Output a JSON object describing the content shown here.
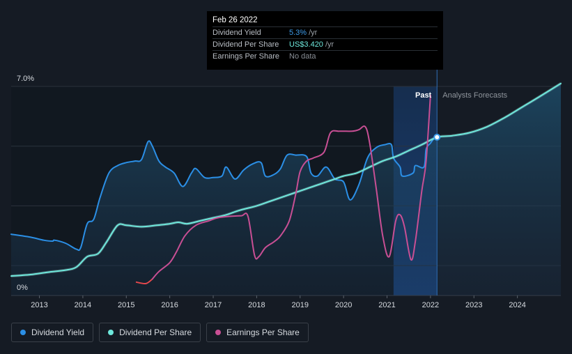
{
  "tooltip": {
    "date": "Feb 26 2022",
    "rows": [
      {
        "name": "Dividend Yield",
        "value": "5.3%",
        "unit": "/yr",
        "color": "#3d9be9"
      },
      {
        "name": "Dividend Per Share",
        "value": "US$3.420",
        "unit": "/yr",
        "color": "#6ee8dc"
      },
      {
        "name": "Earnings Per Share",
        "value": "No data",
        "unit": "",
        "color": "#8a8f96"
      }
    ]
  },
  "legend": [
    {
      "label": "Dividend Yield",
      "color": "#2b8fe6"
    },
    {
      "label": "Dividend Per Share",
      "color": "#6ee8dc"
    },
    {
      "label": "Earnings Per Share",
      "color": "#c84f94"
    }
  ],
  "regions": {
    "past_label": "Past",
    "forecast_label": "Analysts Forecasts"
  },
  "chart_data": {
    "type": "line",
    "y_axis": {
      "min_label": "0%",
      "max_label": "7.0%",
      "range": [
        0,
        7.0
      ]
    },
    "x_axis": {
      "ticks": [
        "2013",
        "2014",
        "2015",
        "2016",
        "2017",
        "2018",
        "2019",
        "2020",
        "2021",
        "2022",
        "2023",
        "2024"
      ],
      "range": [
        2012.35,
        2025.0
      ]
    },
    "past_end": 2022.15,
    "highlight_start": 2021.15,
    "marker": {
      "x": 2022.15,
      "y": 5.3
    },
    "series": [
      {
        "name": "Dividend Yield",
        "color": "#2b8fe6",
        "points": [
          [
            2012.35,
            2.05
          ],
          [
            2012.8,
            1.95
          ],
          [
            2013.1,
            1.85
          ],
          [
            2013.3,
            1.82
          ],
          [
            2013.35,
            1.85
          ],
          [
            2013.6,
            1.75
          ],
          [
            2013.85,
            1.55
          ],
          [
            2013.95,
            1.6
          ],
          [
            2014.1,
            2.4
          ],
          [
            2014.25,
            2.55
          ],
          [
            2014.4,
            3.3
          ],
          [
            2014.6,
            4.1
          ],
          [
            2014.8,
            4.35
          ],
          [
            2015.0,
            4.45
          ],
          [
            2015.2,
            4.5
          ],
          [
            2015.35,
            4.55
          ],
          [
            2015.5,
            5.15
          ],
          [
            2015.6,
            5.0
          ],
          [
            2015.75,
            4.5
          ],
          [
            2015.9,
            4.3
          ],
          [
            2016.1,
            4.1
          ],
          [
            2016.3,
            3.65
          ],
          [
            2016.5,
            4.1
          ],
          [
            2016.6,
            4.25
          ],
          [
            2016.8,
            3.95
          ],
          [
            2017.0,
            3.95
          ],
          [
            2017.2,
            4.0
          ],
          [
            2017.3,
            4.3
          ],
          [
            2017.5,
            3.9
          ],
          [
            2017.7,
            4.2
          ],
          [
            2017.9,
            4.4
          ],
          [
            2018.1,
            4.45
          ],
          [
            2018.2,
            4.0
          ],
          [
            2018.4,
            4.05
          ],
          [
            2018.55,
            4.25
          ],
          [
            2018.7,
            4.7
          ],
          [
            2018.9,
            4.7
          ],
          [
            2019.15,
            4.65
          ],
          [
            2019.25,
            4.1
          ],
          [
            2019.4,
            4.0
          ],
          [
            2019.6,
            4.3
          ],
          [
            2019.8,
            3.9
          ],
          [
            2020.0,
            3.8
          ],
          [
            2020.15,
            3.2
          ],
          [
            2020.35,
            3.7
          ],
          [
            2020.55,
            4.6
          ],
          [
            2020.75,
            4.95
          ],
          [
            2020.95,
            5.05
          ],
          [
            2021.1,
            5.05
          ],
          [
            2021.15,
            4.6
          ],
          [
            2021.3,
            4.3
          ],
          [
            2021.35,
            4.0
          ],
          [
            2021.6,
            4.1
          ],
          [
            2021.65,
            4.35
          ],
          [
            2021.85,
            4.3
          ],
          [
            2021.9,
            4.9
          ],
          [
            2022.0,
            5.1
          ],
          [
            2022.1,
            5.3
          ],
          [
            2022.15,
            5.3
          ]
        ]
      },
      {
        "name": "Dividend Per Share",
        "color": "#6ee8dc",
        "points": [
          [
            2012.35,
            0.65
          ],
          [
            2012.8,
            0.7
          ],
          [
            2013.2,
            0.78
          ],
          [
            2013.6,
            0.85
          ],
          [
            2013.85,
            0.95
          ],
          [
            2014.1,
            1.3
          ],
          [
            2014.35,
            1.4
          ],
          [
            2014.55,
            1.8
          ],
          [
            2014.8,
            2.35
          ],
          [
            2015.0,
            2.35
          ],
          [
            2015.35,
            2.3
          ],
          [
            2015.7,
            2.35
          ],
          [
            2016.0,
            2.4
          ],
          [
            2016.2,
            2.45
          ],
          [
            2016.4,
            2.4
          ],
          [
            2016.7,
            2.5
          ],
          [
            2017.0,
            2.6
          ],
          [
            2017.3,
            2.7
          ],
          [
            2017.6,
            2.85
          ],
          [
            2018.0,
            3.0
          ],
          [
            2018.3,
            3.15
          ],
          [
            2018.6,
            3.3
          ],
          [
            2018.9,
            3.45
          ],
          [
            2019.2,
            3.6
          ],
          [
            2019.5,
            3.75
          ],
          [
            2019.8,
            3.9
          ],
          [
            2020.0,
            4.0
          ],
          [
            2020.3,
            4.1
          ],
          [
            2020.6,
            4.3
          ],
          [
            2020.9,
            4.5
          ],
          [
            2021.2,
            4.65
          ],
          [
            2021.5,
            4.85
          ],
          [
            2021.8,
            5.05
          ],
          [
            2022.15,
            5.3
          ],
          [
            2022.5,
            5.35
          ],
          [
            2022.9,
            5.45
          ],
          [
            2023.3,
            5.65
          ],
          [
            2023.7,
            5.95
          ],
          [
            2024.1,
            6.3
          ],
          [
            2024.5,
            6.65
          ],
          [
            2025.0,
            7.1
          ]
        ]
      },
      {
        "name": "Earnings Per Share",
        "color": "#c84f94",
        "points": [
          [
            2015.22,
            0.45
          ],
          [
            2015.45,
            0.4
          ],
          [
            2015.6,
            0.55
          ],
          [
            2015.75,
            0.8
          ],
          [
            2016.0,
            1.1
          ],
          [
            2016.15,
            1.45
          ],
          [
            2016.35,
            2.0
          ],
          [
            2016.6,
            2.35
          ],
          [
            2016.9,
            2.5
          ],
          [
            2017.1,
            2.6
          ],
          [
            2017.4,
            2.65
          ],
          [
            2017.65,
            2.67
          ],
          [
            2017.8,
            2.65
          ],
          [
            2017.95,
            1.35
          ],
          [
            2018.05,
            1.3
          ],
          [
            2018.2,
            1.6
          ],
          [
            2018.4,
            1.8
          ],
          [
            2018.55,
            2.0
          ],
          [
            2018.75,
            2.5
          ],
          [
            2018.9,
            3.4
          ],
          [
            2019.0,
            4.15
          ],
          [
            2019.15,
            4.5
          ],
          [
            2019.3,
            4.6
          ],
          [
            2019.55,
            4.8
          ],
          [
            2019.7,
            5.45
          ],
          [
            2019.9,
            5.5
          ],
          [
            2020.2,
            5.5
          ],
          [
            2020.35,
            5.55
          ],
          [
            2020.5,
            5.65
          ],
          [
            2020.6,
            5.1
          ],
          [
            2020.75,
            3.6
          ],
          [
            2020.9,
            2.0
          ],
          [
            2021.05,
            1.3
          ],
          [
            2021.2,
            2.5
          ],
          [
            2021.3,
            2.7
          ],
          [
            2021.4,
            2.3
          ],
          [
            2021.55,
            1.2
          ],
          [
            2021.65,
            1.8
          ],
          [
            2021.8,
            3.5
          ],
          [
            2021.9,
            4.5
          ],
          [
            2022.0,
            6.7
          ]
        ]
      }
    ]
  }
}
